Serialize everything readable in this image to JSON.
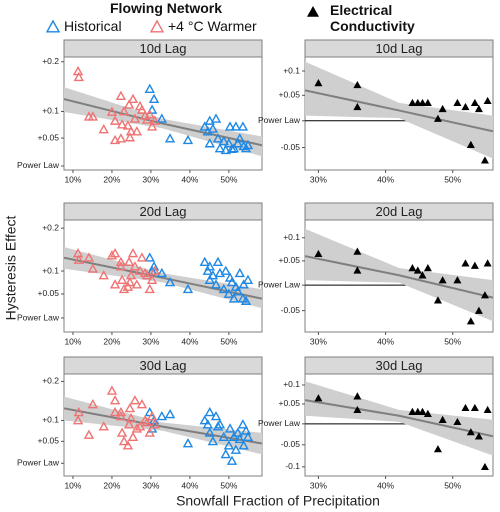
{
  "y_label": "Hysteresis Effect",
  "x_label": "Snowfall Fraction of Precipitation",
  "chart_data": [
    {
      "type": "scatter",
      "title": "10d Lag",
      "legend_title": "Flowing Network",
      "yscale": "log1p",
      "xlim": [
        7.7,
        58.5
      ],
      "xticks": [
        {
          "value": 10,
          "label": "10%"
        },
        {
          "value": 20,
          "label": "20%"
        },
        {
          "value": 30,
          "label": "30%"
        },
        {
          "value": 40,
          "label": "40%"
        },
        {
          "value": 50,
          "label": "50%"
        }
      ],
      "ylim": [
        -0.007,
        0.21
      ],
      "yticks": [
        {
          "value": 0.2,
          "label": "+0.2"
        },
        {
          "value": 0.1,
          "label": "+0.1"
        },
        {
          "value": 0.05,
          "label": "+0.05"
        },
        {
          "value": 0,
          "label": "Power Law"
        }
      ],
      "series": [
        {
          "name": "Historical",
          "color": "#1e88e5",
          "marker": "open-triangle",
          "x": [
            29.7,
            30.3,
            30.8,
            32.8,
            34.9,
            39.5,
            43.8,
            44.6,
            45.1,
            45.1,
            45.9,
            46.7,
            47.2,
            47.7,
            48.7,
            49.2,
            50.0,
            50.3,
            50.8,
            51.3,
            51.8,
            52.3,
            52.8,
            53.6,
            53.8,
            54.4,
            54.9
          ],
          "values": [
            0.144,
            0.103,
            0.124,
            0.086,
            0.049,
            0.046,
            0.071,
            0.062,
            0.082,
            0.04,
            0.067,
            0.086,
            0.049,
            0.031,
            0.044,
            0.028,
            0.04,
            0.071,
            0.03,
            0.031,
            0.071,
            0.04,
            0.049,
            0.071,
            0.035,
            0.031,
            0.037
          ]
        },
        {
          "name": "+4 °C Warmer",
          "color": "#f07373",
          "marker": "open-triangle",
          "x": [
            11.3,
            11.5,
            14.1,
            15.1,
            17.9,
            20.0,
            20.8,
            20.8,
            22.3,
            22.6,
            23.1,
            22.3,
            24.1,
            24.4,
            24.9,
            25.4,
            25.9,
            26.4,
            27.2,
            27.7,
            28.5,
            29.0,
            29.7,
            30.3,
            31.0,
            24.6
          ],
          "values": [
            0.18,
            0.168,
            0.09,
            0.09,
            0.066,
            0.099,
            0.082,
            0.046,
            0.13,
            0.075,
            0.1,
            0.049,
            0.073,
            0.113,
            0.062,
            0.124,
            0.086,
            0.062,
            0.11,
            0.103,
            0.092,
            0.084,
            0.094,
            0.071,
            0.082,
            0.051
          ]
        }
      ],
      "fit": {
        "color": "#7f7f7f",
        "band_color": "#cfcfcf",
        "x": [
          7.7,
          33,
          58.5
        ],
        "values": [
          0.124,
          0.077,
          0.037
        ],
        "upper": [
          0.148,
          0.086,
          0.053
        ],
        "lower": [
          0.099,
          0.068,
          0.017
        ]
      }
    },
    {
      "type": "scatter",
      "title": "10d Lag",
      "yscale": "log1p",
      "zero_line": true,
      "xlim": [
        28,
        56
      ],
      "xticks": [
        {
          "value": 30,
          "label": "30%"
        },
        {
          "value": 40,
          "label": "40%"
        },
        {
          "value": 50,
          "label": "50%"
        }
      ],
      "ylim": [
        -0.09,
        0.13
      ],
      "yticks": [
        {
          "value": 0.1,
          "label": "+0.1"
        },
        {
          "value": 0.05,
          "label": "+0.05"
        },
        {
          "value": 0,
          "label": "Power Law"
        },
        -0.05
      ],
      "series": [
        {
          "name": "Electrical Conductivity",
          "color": "#000000",
          "marker": "triangle",
          "x": [
            30,
            35.8,
            35.8,
            44,
            44.8,
            45.5,
            46.3,
            47.8,
            48.5,
            50.7,
            51.9,
            52.7,
            53.3,
            53.9,
            54.8,
            55.2
          ],
          "values": [
            0.075,
            0.071,
            0.027,
            0.035,
            0.035,
            0.035,
            0.035,
            0.004,
            0.023,
            0.035,
            0.027,
            -0.045,
            0.035,
            0.023,
            -0.073,
            0.039
          ]
        }
      ],
      "fit": {
        "color": "#7f7f7f",
        "band_color": "#cfcfcf",
        "x": [
          28,
          42,
          56
        ],
        "values": [
          0.06,
          0.02,
          -0.02
        ],
        "upper": [
          0.12,
          0.035,
          0.01
        ],
        "lower": [
          0.01,
          0.005,
          -0.07
        ]
      }
    },
    {
      "type": "scatter",
      "title": "20d Lag",
      "yscale": "log1p",
      "xlim": [
        7.7,
        58.5
      ],
      "xticks": [
        {
          "value": 10,
          "label": "10%"
        },
        {
          "value": 20,
          "label": "20%"
        },
        {
          "value": 30,
          "label": "30%"
        },
        {
          "value": 40,
          "label": "40%"
        },
        {
          "value": 50,
          "label": "50%"
        }
      ],
      "ylim": [
        -0.028,
        0.22
      ],
      "yticks": [
        {
          "value": 0.2,
          "label": "+0.2"
        },
        {
          "value": 0.1,
          "label": "+0.1"
        },
        {
          "value": 0.05,
          "label": "+0.05"
        },
        {
          "value": 0,
          "label": "Power Law"
        }
      ],
      "series": [
        {
          "color": "#1e88e5",
          "marker": "open-triangle",
          "x": [
            29.7,
            30.3,
            30.8,
            32.8,
            34.9,
            39.5,
            43.8,
            44.6,
            45.1,
            45.1,
            45.9,
            46.7,
            47.2,
            47.7,
            48.7,
            49.2,
            50.0,
            50.3,
            50.8,
            51.3,
            51.8,
            52.3,
            52.8,
            53.6,
            53.8,
            54.4,
            54.9
          ],
          "values": [
            0.13,
            0.1,
            0.11,
            0.095,
            0.075,
            0.06,
            0.12,
            0.1,
            0.08,
            0.11,
            0.09,
            0.07,
            0.12,
            0.095,
            0.06,
            0.1,
            0.05,
            0.085,
            0.075,
            0.04,
            0.065,
            0.055,
            0.095,
            0.04,
            0.07,
            0.035,
            0.08
          ]
        },
        {
          "color": "#f07373",
          "marker": "open-triangle",
          "x": [
            11.3,
            11.5,
            14.1,
            15.1,
            17.9,
            20.0,
            20.8,
            20.8,
            22.3,
            22.6,
            23.1,
            22.3,
            24.1,
            24.4,
            24.9,
            25.4,
            25.9,
            26.4,
            27.2,
            27.7,
            28.5,
            29.0,
            29.7,
            30.3,
            31.0,
            24.6
          ],
          "values": [
            0.14,
            0.125,
            0.13,
            0.105,
            0.09,
            0.135,
            0.14,
            0.07,
            0.12,
            0.08,
            0.06,
            0.11,
            0.065,
            0.12,
            0.09,
            0.14,
            0.11,
            0.07,
            0.1,
            0.13,
            0.095,
            0.09,
            0.06,
            0.08,
            0.1,
            0.075
          ]
        }
      ],
      "fit": {
        "color": "#7f7f7f",
        "band_color": "#cfcfcf",
        "x": [
          7.7,
          33,
          58.5
        ],
        "values": [
          0.13,
          0.085,
          0.04
        ],
        "upper": [
          0.155,
          0.095,
          0.06
        ],
        "lower": [
          0.105,
          0.075,
          0.02
        ]
      }
    },
    {
      "type": "scatter",
      "title": "20d Lag",
      "yscale": "log1p",
      "zero_line": true,
      "xlim": [
        28,
        56
      ],
      "xticks": [
        {
          "value": 30,
          "label": "30%"
        },
        {
          "value": 40,
          "label": "40%"
        },
        {
          "value": 50,
          "label": "50%"
        }
      ],
      "ylim": [
        -0.09,
        0.14
      ],
      "yticks": [
        {
          "value": 0.1,
          "label": "+0.1"
        },
        {
          "value": 0.05,
          "label": "+0.05"
        },
        {
          "value": 0,
          "label": "Power Law"
        },
        -0.05
      ],
      "series": [
        {
          "color": "#000000",
          "marker": "triangle",
          "x": [
            30,
            35.8,
            35.8,
            44,
            44.8,
            45.5,
            46.3,
            47.8,
            48.5,
            50.7,
            51.9,
            52.7,
            53.3,
            53.9,
            54.8,
            55.2
          ],
          "values": [
            0.065,
            0.07,
            0.03,
            0.035,
            0.03,
            0.02,
            0.035,
            -0.03,
            0.01,
            0.01,
            0.045,
            -0.07,
            0.04,
            -0.05,
            -0.02,
            0.045
          ]
        }
      ],
      "fit": {
        "color": "#7f7f7f",
        "band_color": "#cfcfcf",
        "x": [
          28,
          42,
          56
        ],
        "values": [
          0.06,
          0.02,
          -0.025
        ],
        "upper": [
          0.12,
          0.035,
          0.01
        ],
        "lower": [
          0.01,
          0.005,
          -0.07
        ]
      }
    },
    {
      "type": "scatter",
      "title": "30d Lag",
      "yscale": "log1p",
      "xlim": [
        7.7,
        58.5
      ],
      "xticks": [
        {
          "value": 10,
          "label": "10%"
        },
        {
          "value": 20,
          "label": "20%"
        },
        {
          "value": 30,
          "label": "30%"
        },
        {
          "value": 40,
          "label": "40%"
        },
        {
          "value": 50,
          "label": "50%"
        }
      ],
      "ylim": [
        -0.028,
        0.22
      ],
      "yticks": [
        {
          "value": 0.2,
          "label": "+0.2"
        },
        {
          "value": 0.1,
          "label": "+0.1"
        },
        {
          "value": 0.05,
          "label": "+0.05"
        },
        {
          "value": 0,
          "label": "Power Law"
        }
      ],
      "series": [
        {
          "color": "#1e88e5",
          "marker": "open-triangle",
          "x": [
            29.7,
            30.3,
            30.8,
            32.8,
            34.9,
            39.5,
            43.8,
            44.6,
            45.1,
            45.1,
            45.9,
            46.7,
            47.2,
            47.7,
            48.7,
            49.2,
            50.0,
            50.3,
            50.8,
            51.3,
            51.8,
            52.3,
            52.8,
            53.6,
            53.8,
            54.4,
            54.9
          ],
          "values": [
            0.12,
            0.08,
            0.1,
            0.11,
            0.115,
            0.045,
            0.1,
            0.09,
            0.12,
            0.07,
            0.05,
            0.11,
            0.085,
            0.09,
            0.06,
            0.02,
            0.04,
            0.08,
            0.005,
            0.06,
            0.03,
            0.07,
            0.055,
            0.09,
            0.04,
            0.075,
            0.06
          ]
        },
        {
          "color": "#f07373",
          "marker": "open-triangle",
          "x": [
            11.3,
            11.5,
            14.1,
            15.1,
            17.9,
            20.0,
            20.8,
            20.8,
            22.3,
            22.6,
            23.1,
            22.3,
            24.1,
            24.4,
            24.9,
            25.4,
            25.9,
            26.4,
            27.2,
            27.7,
            28.5,
            29.0,
            29.7,
            30.3,
            31.0,
            24.6
          ],
          "values": [
            0.1,
            0.12,
            0.065,
            0.14,
            0.085,
            0.175,
            0.15,
            0.12,
            0.11,
            0.07,
            0.05,
            0.12,
            0.04,
            0.09,
            0.105,
            0.06,
            0.15,
            0.08,
            0.085,
            0.14,
            0.1,
            0.095,
            0.07,
            0.11,
            0.09,
            0.13
          ]
        }
      ],
      "fit": {
        "color": "#7f7f7f",
        "band_color": "#cfcfcf",
        "x": [
          7.7,
          33,
          58.5
        ],
        "values": [
          0.13,
          0.085,
          0.045
        ],
        "upper": [
          0.16,
          0.095,
          0.07
        ],
        "lower": [
          0.1,
          0.075,
          0.02
        ]
      }
    },
    {
      "type": "scatter",
      "title": "30d Lag",
      "yscale": "log1p",
      "zero_line": true,
      "xlim": [
        28,
        56
      ],
      "xticks": [
        {
          "value": 30,
          "label": "30%"
        },
        {
          "value": 40,
          "label": "40%"
        },
        {
          "value": 50,
          "label": "50%"
        }
      ],
      "ylim": [
        -0.12,
        0.13
      ],
      "yticks": [
        {
          "value": 0.1,
          "label": "+0.1"
        },
        {
          "value": 0.05,
          "label": "+0.05"
        },
        {
          "value": 0,
          "label": "Power Law"
        },
        -0.05,
        -0.1
      ],
      "series": [
        {
          "color": "#000000",
          "marker": "triangle",
          "x": [
            30,
            35.8,
            35.8,
            44,
            44.8,
            45.5,
            46.3,
            47.8,
            48.5,
            50.7,
            51.9,
            52.7,
            53.3,
            53.9,
            54.8,
            55.2
          ],
          "values": [
            0.065,
            0.07,
            0.035,
            0.03,
            0.03,
            0.03,
            0.025,
            -0.06,
            0.01,
            0.005,
            0.04,
            -0.02,
            0.04,
            -0.03,
            -0.1,
            0.035
          ]
        }
      ],
      "fit": {
        "color": "#7f7f7f",
        "band_color": "#cfcfcf",
        "x": [
          28,
          42,
          56
        ],
        "values": [
          0.06,
          0.02,
          -0.03
        ],
        "upper": [
          0.11,
          0.035,
          0.01
        ],
        "lower": [
          0.02,
          0.005,
          -0.075
        ]
      }
    }
  ]
}
